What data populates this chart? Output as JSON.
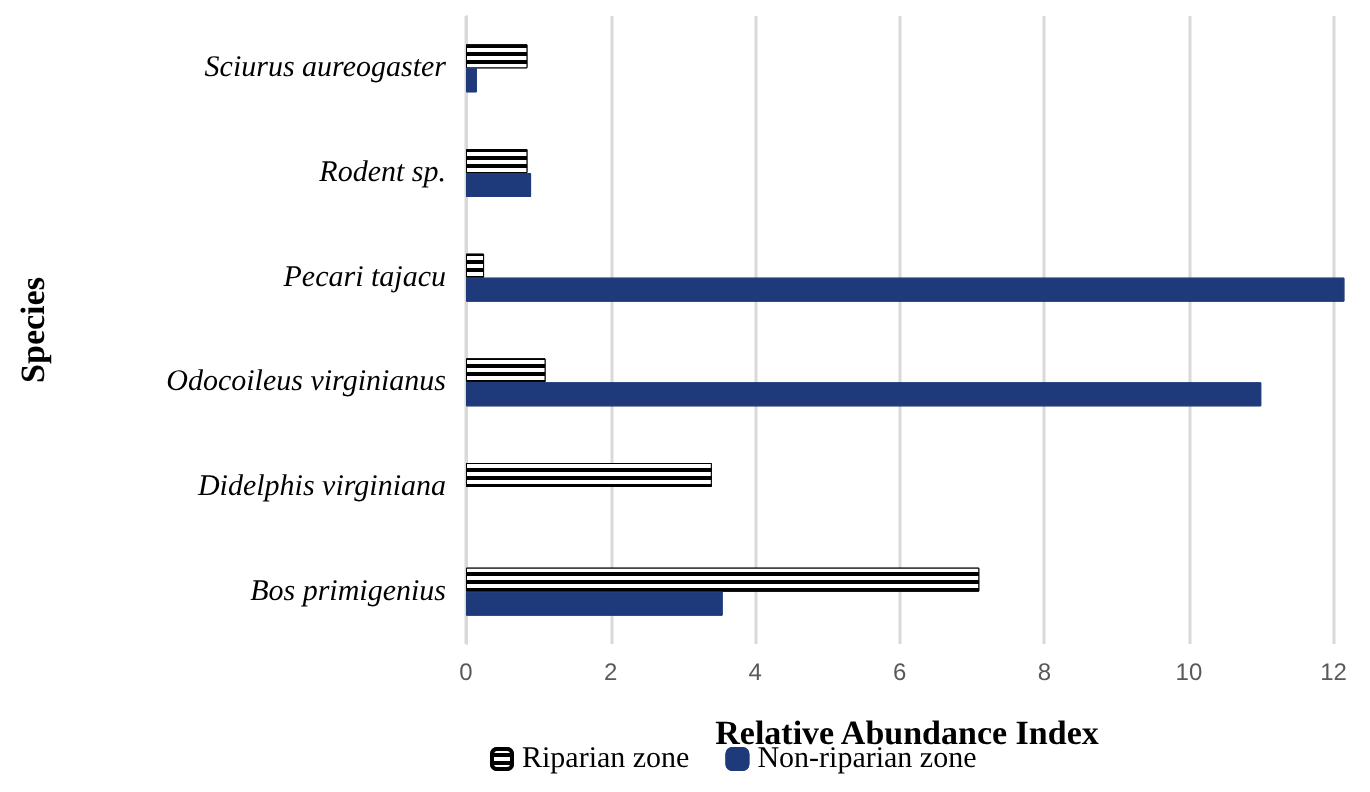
{
  "chart_data": {
    "type": "bar",
    "orientation": "horizontal",
    "xlabel": "Relative Abundance Index",
    "ylabel": "Species",
    "categories": [
      "Sciurus aureogaster",
      "Rodent sp.",
      "Pecari tajacu",
      "Odocoileus virginianus",
      "Didelphis virginiana",
      "Bos primigenius"
    ],
    "series": [
      {
        "name": "Riparian zone",
        "color": "#000000",
        "values": [
          0.85,
          0.85,
          0.25,
          1.1,
          3.4,
          7.1
        ]
      },
      {
        "name": "Non-riparian zone",
        "color": "#1f3a7a",
        "values": [
          0.15,
          0.9,
          12.15,
          11.0,
          null,
          3.55
        ]
      }
    ],
    "xlim": [
      0,
      12.2
    ],
    "xticks": [
      0,
      2,
      4,
      6,
      8,
      10,
      12
    ],
    "grid": "x",
    "legend": "bottom"
  }
}
